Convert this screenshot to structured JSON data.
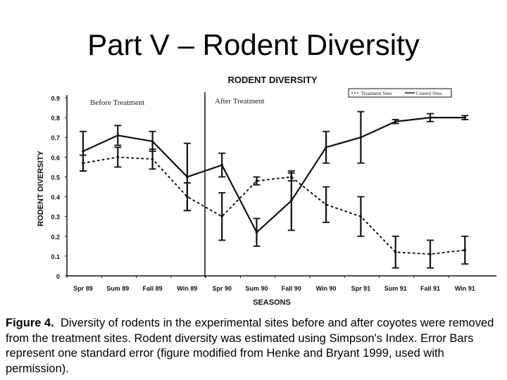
{
  "slide": {
    "title": "Part V – Rodent Diversity"
  },
  "caption": {
    "label": "Figure 4.",
    "text": "Diversity of rodents in the experimental sites before and after coyotes were removed from the treatment sites. Rodent diversity was estimated using Simpson's Index. Error Bars represent one standard error (figure modified from Henke and Bryant 1999, used with permission)."
  },
  "chart_data": {
    "type": "line",
    "title": "RODENT DIVERSITY",
    "xlabel": "SEASONS",
    "ylabel": "RODENT DIVERSITY",
    "ylim": [
      0,
      0.9
    ],
    "yticks": [
      "0",
      "0.1",
      "0.2",
      "0.3",
      "0.4",
      "0.5",
      "0.6",
      "0.7",
      "0.8",
      "0.9"
    ],
    "grid": false,
    "legend_position": "top-right",
    "categories": [
      "Spr 89",
      "Sum 89",
      "Fall 89",
      "Win 89",
      "Spr 90",
      "Sum 90",
      "Fall 90",
      "Win 90",
      "Spr 91",
      "Sum 91",
      "Fall 91",
      "Win 91"
    ],
    "annotations": [
      {
        "text": "Before Treatment",
        "position": "top-left"
      },
      {
        "text": "After Treatment",
        "position": "after divider between Win 89 and Spr 90"
      }
    ],
    "divider_between": [
      "Win 89",
      "Spr 90"
    ],
    "series": [
      {
        "name": "Treatment Sites",
        "style": "dotted",
        "values": [
          0.57,
          0.6,
          0.59,
          0.4,
          0.3,
          0.48,
          0.5,
          0.36,
          0.3,
          0.12,
          0.11,
          0.13
        ],
        "error": [
          0.04,
          0.05,
          0.05,
          0.07,
          0.12,
          0.02,
          0.02,
          0.09,
          0.1,
          0.08,
          0.07,
          0.07
        ]
      },
      {
        "name": "Control Sites",
        "style": "solid",
        "values": [
          0.63,
          0.71,
          0.68,
          0.5,
          0.56,
          0.22,
          0.38,
          0.65,
          0.7,
          0.78,
          0.8,
          0.8
        ],
        "error": [
          0.1,
          0.05,
          0.05,
          0.17,
          0.06,
          0.07,
          0.15,
          0.08,
          0.13,
          0.01,
          0.02,
          0.01
        ]
      }
    ]
  }
}
